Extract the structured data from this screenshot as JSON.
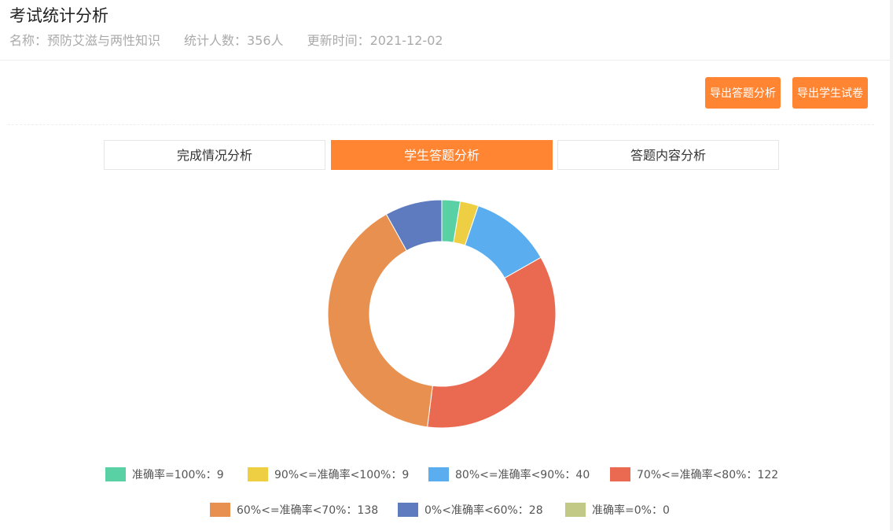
{
  "header": {
    "title": "考试统计分析",
    "name": "名称：预防艾滋与两性知识",
    "count": "统计人数：356人",
    "updated": "更新时间：2021-12-02"
  },
  "buttons": {
    "export_analysis": "导出答题分析",
    "export_papers": "导出学生试卷"
  },
  "tabs": [
    {
      "label": "完成情况分析",
      "active": false
    },
    {
      "label": "学生答题分析",
      "active": true
    },
    {
      "label": "答题内容分析",
      "active": false
    }
  ],
  "chart_data": {
    "type": "pie",
    "donut": true,
    "legend_position": "bottom",
    "series": [
      {
        "name": "准确率=100%",
        "value": 9,
        "color": "#5ad0a5",
        "label": "准确率=100%：9"
      },
      {
        "name": "90%<=准确率<100%",
        "value": 9,
        "color": "#eecf44",
        "label": "90%<=准确率<100%：9"
      },
      {
        "name": "80%<=准确率<90%",
        "value": 40,
        "color": "#5aaeef",
        "label": "80%<=准确率<90%：40"
      },
      {
        "name": "70%<=准确率<80%",
        "value": 122,
        "color": "#e96a50",
        "label": "70%<=准确率<80%：122"
      },
      {
        "name": "60%<=准确率<70%",
        "value": 138,
        "color": "#e8904f",
        "label": "60%<=准确率<70%：138"
      },
      {
        "name": "0%<准确率<60%",
        "value": 28,
        "color": "#5f7bbf",
        "label": "0%<准确率<60%：28"
      },
      {
        "name": "准确率=0%",
        "value": 0,
        "color": "#c2c986",
        "label": "准确率=0%：0"
      }
    ]
  }
}
